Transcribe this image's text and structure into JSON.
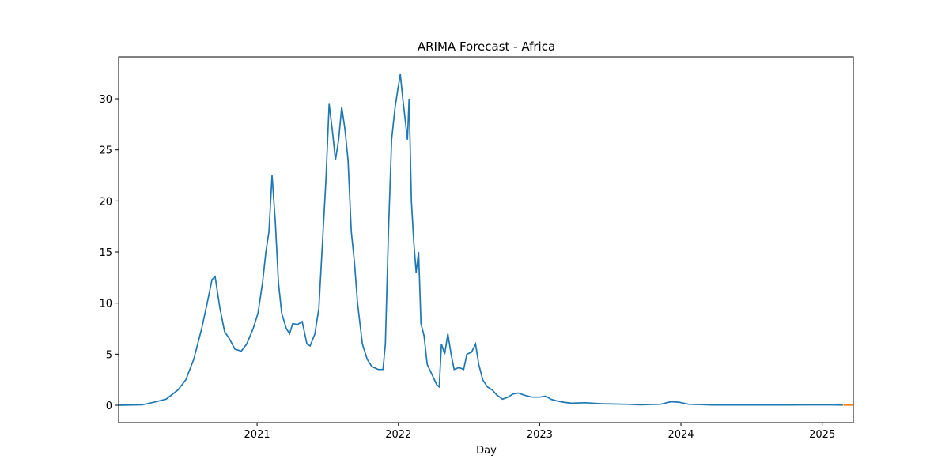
{
  "chart_data": {
    "type": "line",
    "title": "ARIMA Forecast - Africa",
    "x_label": "Day",
    "xlim": [
      2020.02,
      2025.22
    ],
    "xticks": [
      2021,
      2022,
      2023,
      2024,
      2025
    ],
    "ylim": [
      -1.7,
      34.1
    ],
    "yticks": [
      0,
      5,
      10,
      15,
      20,
      25,
      30
    ],
    "series": [
      {
        "color": "#1f77b4",
        "x": [
          2020.02,
          2020.188,
          2020.272,
          2020.356,
          2020.44,
          2020.496,
          2020.552,
          2020.608,
          2020.647,
          2020.681,
          2020.703,
          2020.737,
          2020.77,
          2020.804,
          2020.843,
          2020.888,
          2020.927,
          2020.972,
          2021.006,
          2021.039,
          2021.062,
          2021.084,
          2021.106,
          2021.129,
          2021.151,
          2021.174,
          2021.207,
          2021.23,
          2021.252,
          2021.286,
          2021.319,
          2021.353,
          2021.375,
          2021.409,
          2021.437,
          2021.459,
          2021.487,
          2021.51,
          2021.532,
          2021.555,
          2021.577,
          2021.599,
          2021.622,
          2021.644,
          2021.667,
          2021.689,
          2021.711,
          2021.745,
          2021.779,
          2021.812,
          2021.857,
          2021.891,
          2021.908,
          2021.93,
          2021.952,
          2021.975,
          2021.997,
          2022.014,
          2022.031,
          2022.048,
          2022.064,
          2022.076,
          2022.092,
          2022.109,
          2022.126,
          2022.143,
          2022.16,
          2022.182,
          2022.204,
          2022.238,
          2022.272,
          2022.289,
          2022.305,
          2022.328,
          2022.35,
          2022.373,
          2022.395,
          2022.429,
          2022.462,
          2022.485,
          2022.518,
          2022.546,
          2022.569,
          2022.597,
          2022.63,
          2022.664,
          2022.697,
          2022.737,
          2022.776,
          2022.81,
          2022.849,
          2022.888,
          2022.944,
          2023.0,
          2023.045,
          2023.078,
          2023.129,
          2023.168,
          2023.224,
          2023.325,
          2023.437,
          2023.605,
          2023.717,
          2023.857,
          2023.93,
          2023.986,
          2024.053,
          2024.221,
          2024.782,
          2025.034,
          2025.146
        ],
        "values": [
          0,
          0.05,
          0.3,
          0.6,
          1.5,
          2.5,
          4.5,
          7.5,
          10,
          12.3,
          12.6,
          9.5,
          7.2,
          6.5,
          5.5,
          5.3,
          6.0,
          7.5,
          9.0,
          12,
          15,
          17,
          22.5,
          18,
          12,
          9,
          7.5,
          7.0,
          8.0,
          7.9,
          8.2,
          6.0,
          5.8,
          7.0,
          9.5,
          15,
          22,
          29.5,
          27,
          24,
          26,
          29.2,
          27,
          24,
          17,
          14,
          10,
          6,
          4.5,
          3.8,
          3.5,
          3.5,
          6,
          17,
          26,
          29,
          31,
          32.4,
          30,
          28,
          26,
          30,
          20,
          16,
          13,
          15,
          8,
          6.8,
          4,
          3,
          2,
          1.8,
          6,
          5,
          7,
          5,
          3.5,
          3.7,
          3.5,
          5,
          5.2,
          6.0,
          4,
          2.5,
          1.8,
          1.5,
          1.0,
          0.6,
          0.8,
          1.1,
          1.2,
          1.0,
          0.8,
          0.8,
          0.9,
          0.6,
          0.4,
          0.3,
          0.2,
          0.25,
          0.15,
          0.1,
          0.05,
          0.1,
          0.35,
          0.3,
          0.1,
          0.03,
          0.03,
          0.05,
          0.02
        ]
      },
      {
        "color": "#ff7f0e",
        "x": [
          2025.15,
          2025.22
        ],
        "values": [
          0.02,
          0.02
        ]
      }
    ]
  }
}
